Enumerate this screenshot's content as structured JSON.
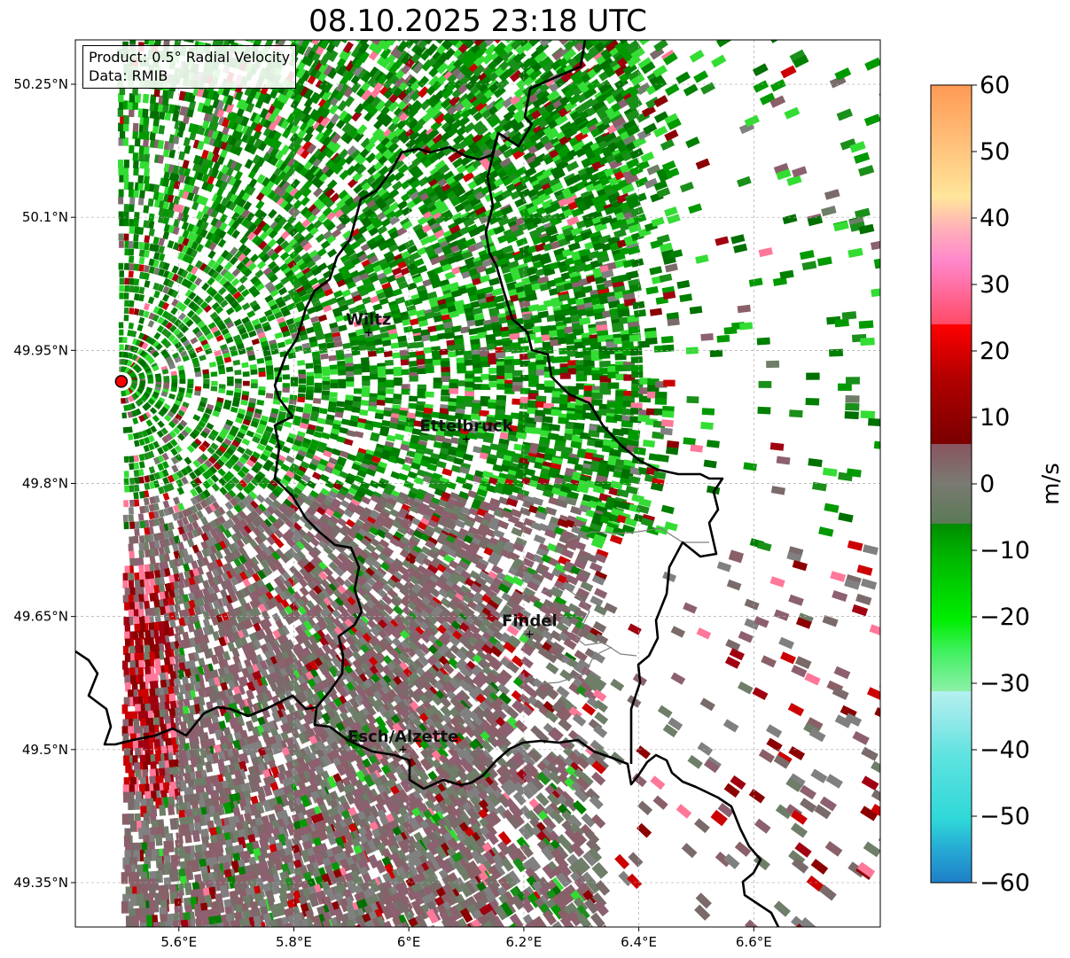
{
  "title": "08.10.2025 23:18 UTC",
  "info_box": {
    "product_line": "Product: 0.5° Radial Velocity",
    "data_line": "Data: RMIB"
  },
  "axes": {
    "lon_labels": [
      "5.6°E",
      "5.8°E",
      "6°E",
      "6.2°E",
      "6.4°E",
      "6.6°E"
    ],
    "lat_labels": [
      "50.25°N",
      "50.1°N",
      "49.95°N",
      "49.8°N",
      "49.65°N",
      "49.5°N",
      "49.35°N"
    ],
    "lon_values": [
      5.6,
      5.8,
      6.0,
      6.2,
      6.4,
      6.6
    ],
    "lat_values": [
      50.25,
      50.1,
      49.95,
      49.8,
      49.65,
      49.5,
      49.35
    ],
    "lon_range": [
      5.42,
      6.82
    ],
    "lat_range": [
      49.3,
      50.3
    ]
  },
  "cities": [
    {
      "name": "Wiltz",
      "lon": 5.93,
      "lat": 49.97
    },
    {
      "name": "Ettelbruck",
      "lon": 6.1,
      "lat": 49.85
    },
    {
      "name": "Findel",
      "lon": 6.21,
      "lat": 49.63
    },
    {
      "name": "Esch/Alzette",
      "lon": 5.99,
      "lat": 49.5
    }
  ],
  "radar_site": {
    "lon": 5.5,
    "lat": 49.915,
    "color": "#ff0000"
  },
  "colorbar": {
    "unit": "m/s",
    "labels": [
      "60",
      "50",
      "40",
      "30",
      "20",
      "10",
      "0",
      "−10",
      "−20",
      "−30",
      "−40",
      "−50",
      "−60"
    ],
    "min": -60,
    "max": 60
  },
  "colors": {
    "approaching_green": "#008000",
    "light_green": "#33dd33",
    "receding_red": "#8b0000",
    "bright_red": "#cc0000",
    "near_zero_gray": "#808080",
    "near_zero_mauve": "#8a6068",
    "border": "#000000"
  }
}
